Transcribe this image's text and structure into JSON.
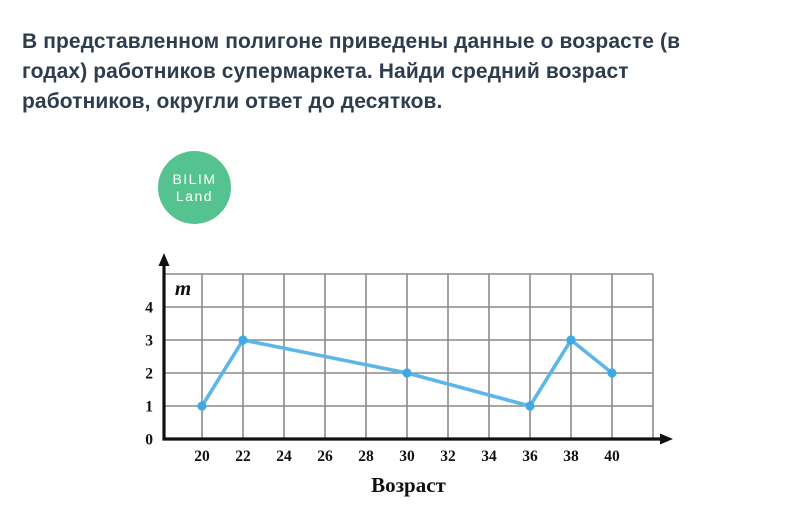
{
  "page": {
    "background_color": "#ffffff"
  },
  "question": {
    "lines": [
      "В представленном полигоне приведены данные о возрасте (в",
      "годах) работников супермаркета. Найди средний возраст",
      "работников, округли ответ до десятков."
    ],
    "text_color": "#2e3d4d"
  },
  "logo": {
    "line1": "BILIM",
    "line2": "Land",
    "background_color": "#54c390",
    "text_color": "#ffffff"
  },
  "chart_data": {
    "type": "line",
    "title": "",
    "xlabel": "Возраст",
    "ylabel": "m",
    "x": [
      20,
      22,
      30,
      36,
      38,
      40
    ],
    "values": [
      1,
      3,
      2,
      1,
      3,
      2
    ],
    "x_ticks": [
      20,
      22,
      24,
      26,
      28,
      30,
      32,
      34,
      36,
      38,
      40
    ],
    "y_ticks": [
      0,
      1,
      2,
      3,
      4
    ],
    "xlim": [
      18,
      42
    ],
    "ylim": [
      0,
      5
    ],
    "grid": true,
    "legend": false,
    "line_color": "#5cb6e8",
    "marker_color": "#3fa9e1",
    "grid_color": "#8a8a8a",
    "axis_color": "#111111"
  }
}
